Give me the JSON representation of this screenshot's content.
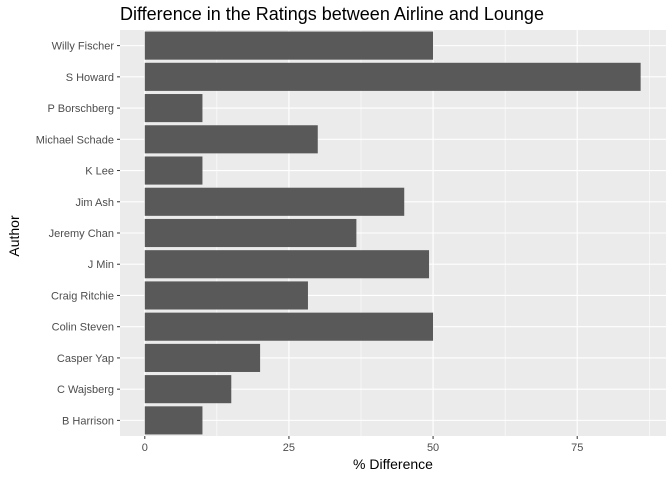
{
  "chart_data": {
    "type": "bar",
    "orientation": "horizontal",
    "title": "Difference in the Ratings between Airline and Lounge",
    "xlabel": "% Difference",
    "ylabel": "Author",
    "categories": [
      "Willy Fischer",
      "S Howard",
      "P Borschberg",
      "Michael Schade",
      "K Lee",
      "Jim Ash",
      "Jeremy Chan",
      "J Min",
      "Craig Ritchie",
      "Colin Steven",
      "Casper Yap",
      "C Wajsberg",
      "B Harrison"
    ],
    "values": [
      50,
      86,
      10,
      30,
      10,
      45,
      36.7,
      49.3,
      28.3,
      50,
      20,
      15,
      10
    ],
    "xlim": [
      -4.3,
      90.4
    ],
    "xticks": [
      0,
      25,
      50,
      75
    ],
    "grid": true,
    "colors": {
      "panel": "#ebebeb",
      "grid": "#ffffff",
      "bar": "#595959",
      "tick_text": "#4d4d4d"
    }
  }
}
